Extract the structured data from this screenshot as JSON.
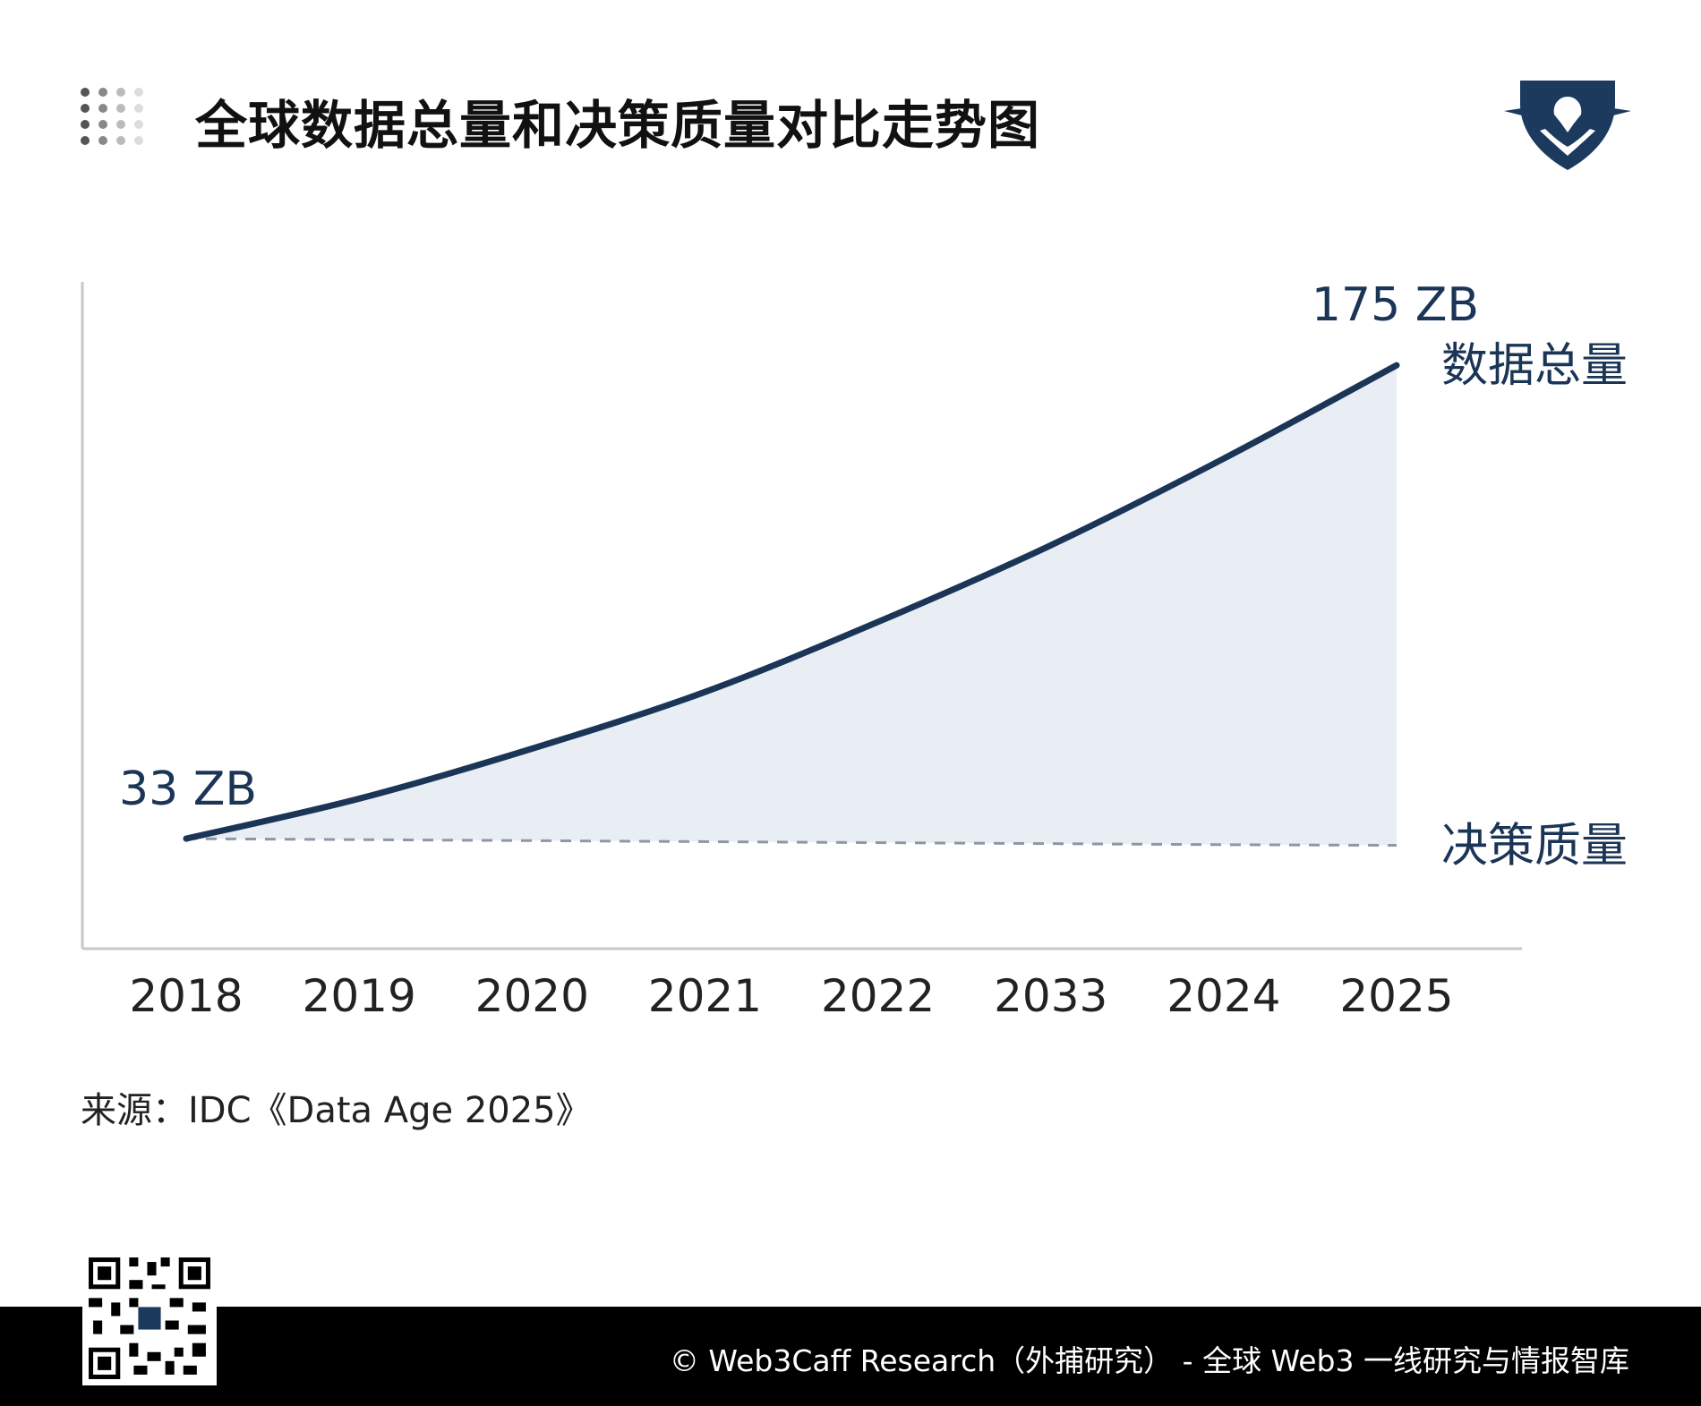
{
  "page": {
    "title": "全球数据总量和决策质量对比走势图",
    "source_note": "来源：IDC《Data Age 2025》",
    "footer_text": "© Web3Caff Research（外捕研究） - 全球 Web3 一线研究与情报智库"
  },
  "colors": {
    "series_line": "#1b3556",
    "area_fill": "#e9eef5",
    "dashed_line": "#8c98a6",
    "axis": "#c8c8c8",
    "label_text": "#1b3556",
    "tick_text": "#222222"
  },
  "chart_data": {
    "type": "area",
    "categories": [
      "2018",
      "2019",
      "2020",
      "2021",
      "2022",
      "2033",
      "2024",
      "2025"
    ],
    "series": [
      {
        "name": "数据总量",
        "style": "solid",
        "values": [
          33,
          45,
          60,
          77,
          98,
          121,
          147,
          175
        ],
        "start_label": "33 ZB",
        "end_label": "175 ZB"
      },
      {
        "name": "决策质量",
        "style": "dashed",
        "values": [
          33,
          32.7,
          32.4,
          32.1,
          31.8,
          31.5,
          31.2,
          31.0
        ]
      }
    ],
    "ylim": [
      0,
      200
    ],
    "grid": false,
    "legend": "inline-right",
    "xlabel": "",
    "ylabel": ""
  }
}
